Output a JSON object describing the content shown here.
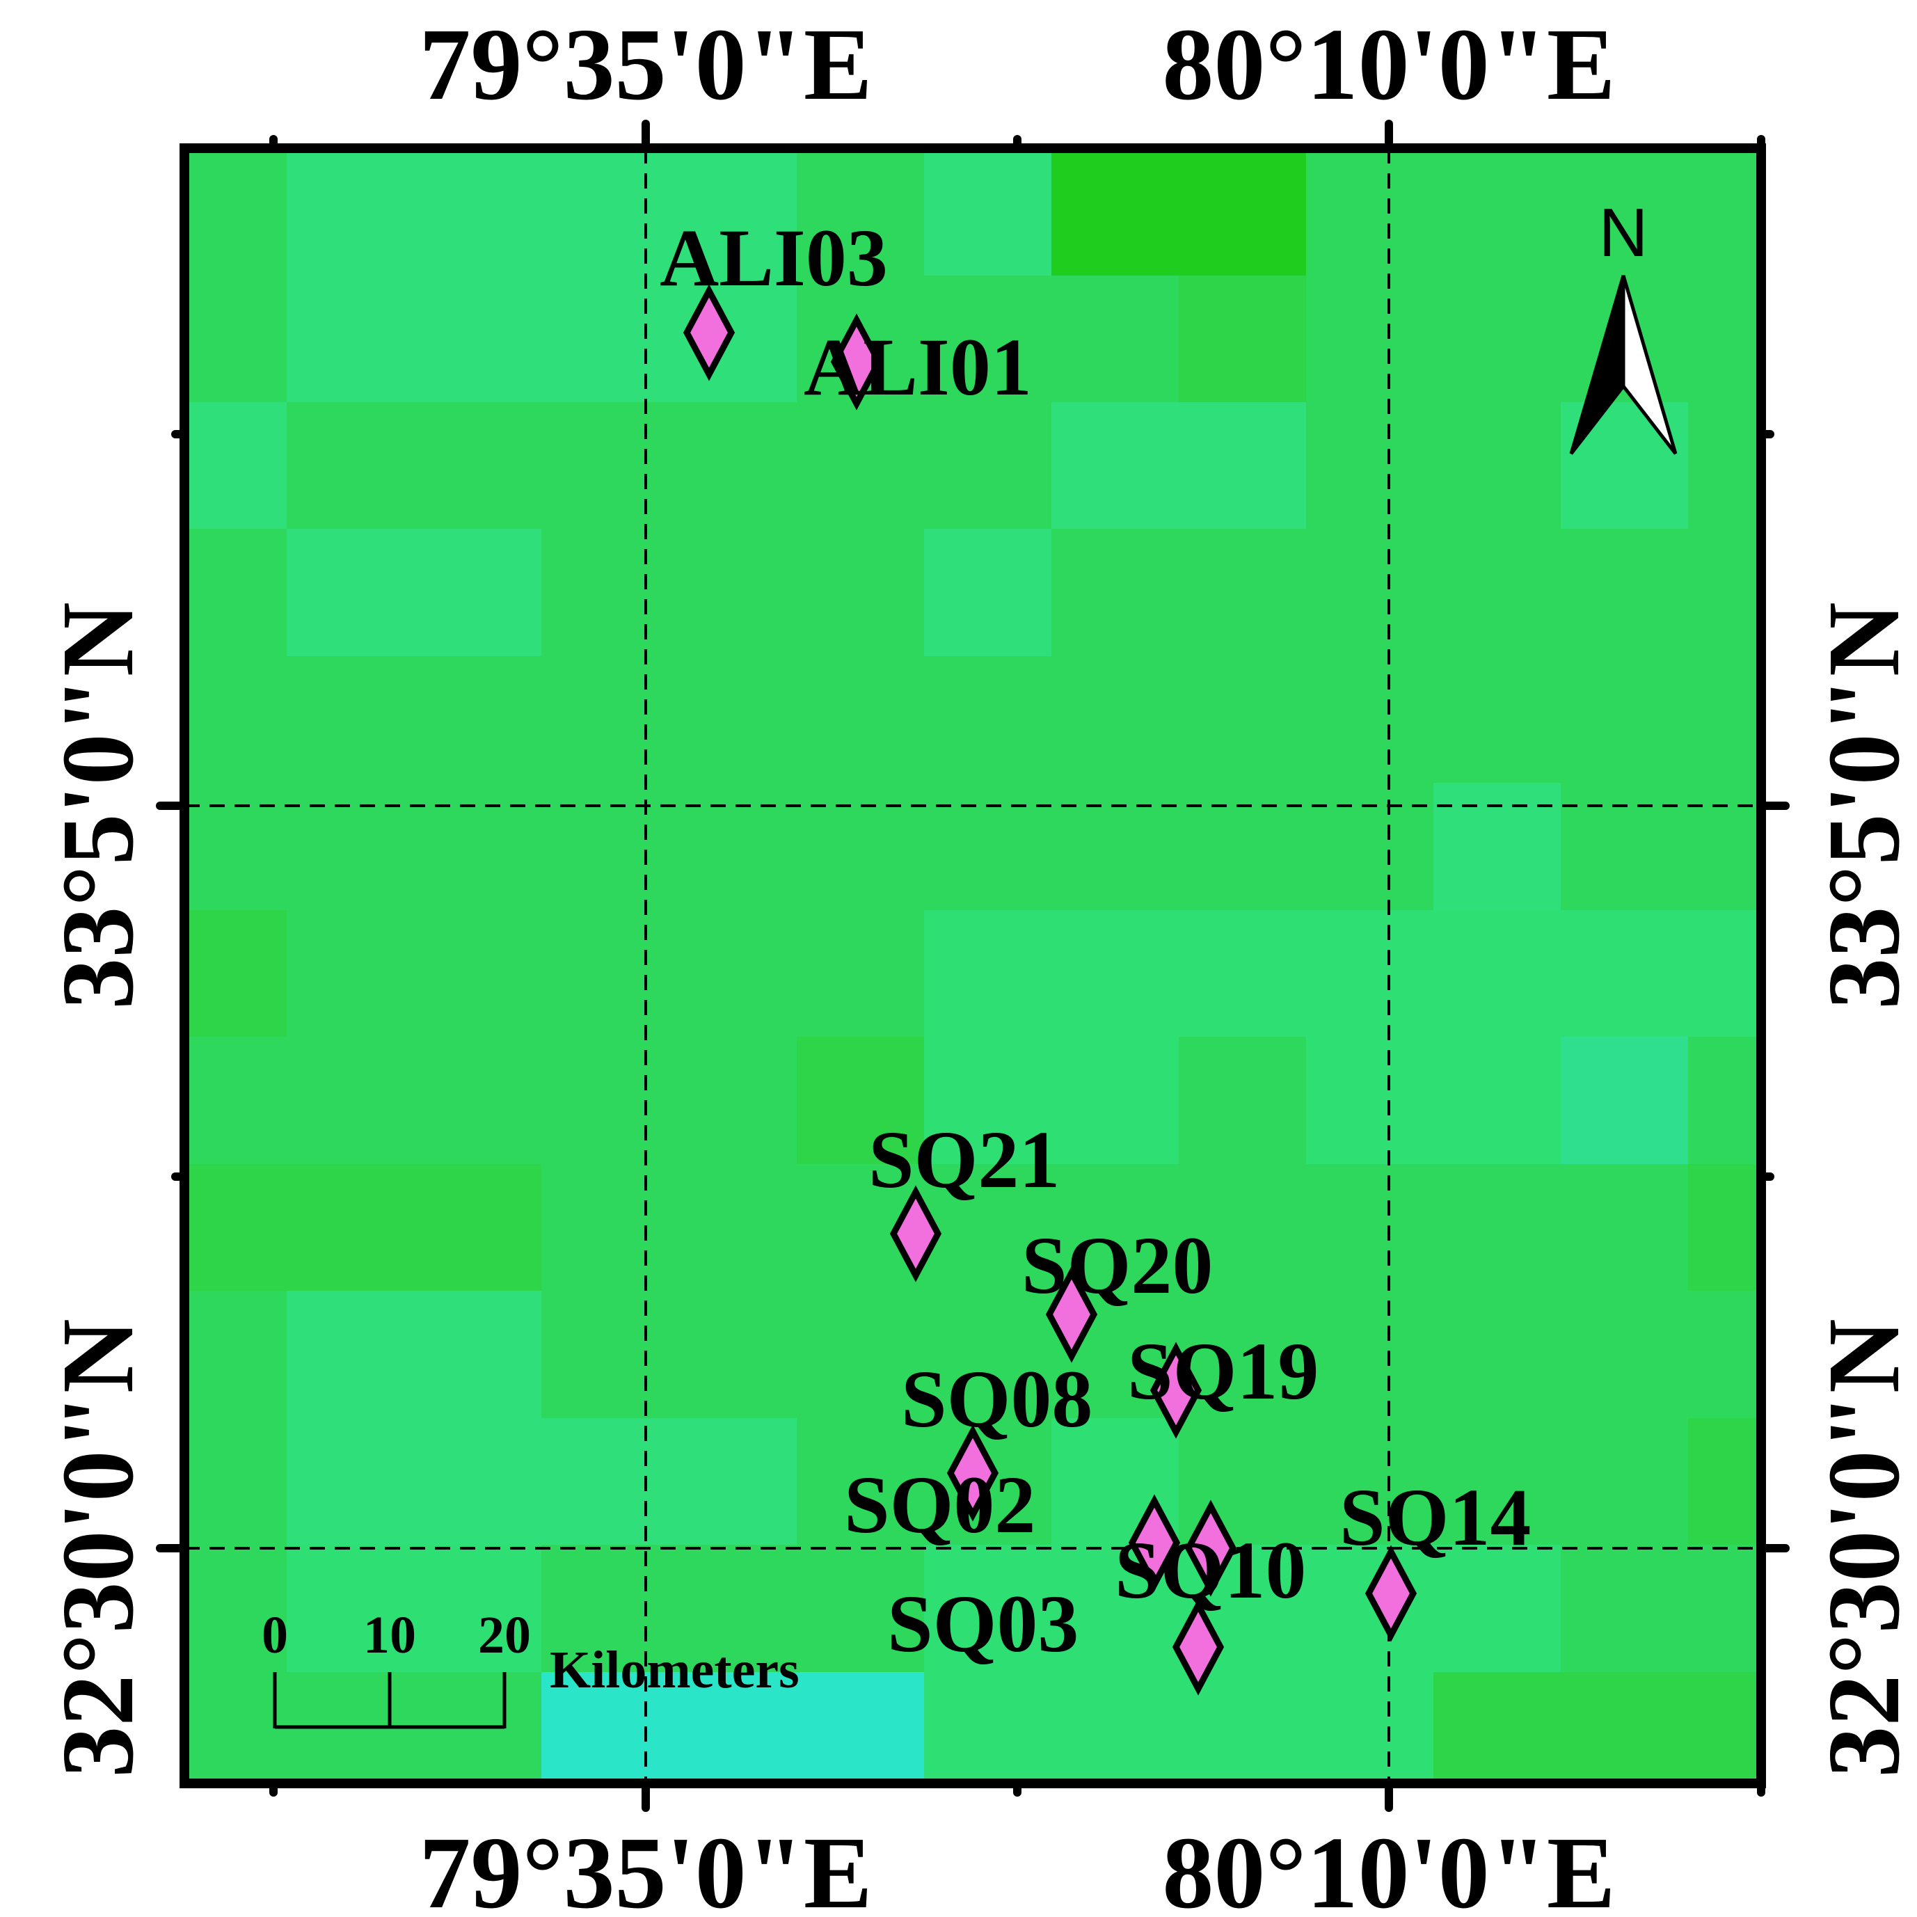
{
  "map": {
    "longitude_labels": [
      "79°35'0\"E",
      "80°10'0\"E"
    ],
    "latitude_labels": [
      "33°5'0\"N",
      "32°30'0\"N"
    ],
    "background_colors": [
      "#2dd85c",
      "#2fdf79",
      "#2ee074",
      "#1fcd1f",
      "#2ed548",
      "#30df8e",
      "#2be5c8"
    ],
    "marker_color": "#f26fde",
    "sites": [
      {
        "id": "ALI03",
        "label": "ALI03"
      },
      {
        "id": "ALI01",
        "label": "ALI01"
      },
      {
        "id": "SQ21",
        "label": "SQ21"
      },
      {
        "id": "SQ20",
        "label": "SQ20"
      },
      {
        "id": "SQ19",
        "label": "SQ19"
      },
      {
        "id": "SQ08",
        "label": "SQ08"
      },
      {
        "id": "SQ02",
        "label": "SQ02"
      },
      {
        "id": "SQ10",
        "label": "SQ10"
      },
      {
        "id": "SQ14",
        "label": "SQ14"
      },
      {
        "id": "SQ03",
        "label": "SQ03"
      }
    ],
    "north_arrow": {
      "label": "N",
      "icon": "north-arrow-icon"
    },
    "scale_bar": {
      "ticks": [
        "0",
        "10",
        "20"
      ],
      "unit": "Kilometers"
    }
  }
}
